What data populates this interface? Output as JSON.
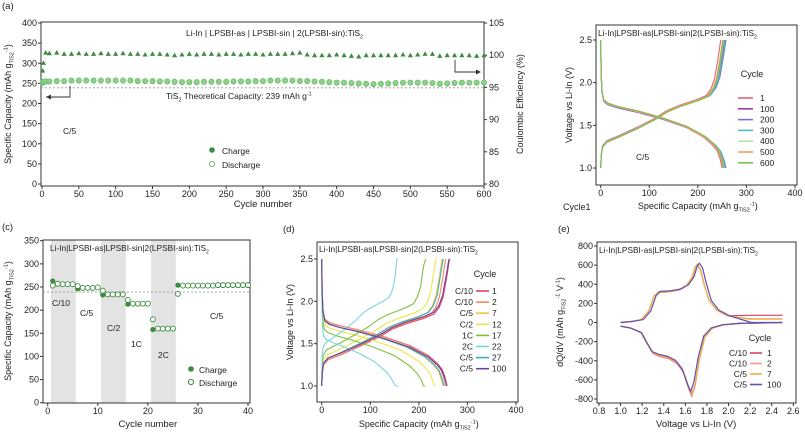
{
  "panel_labels": {
    "a": "(a)",
    "c": "(c)",
    "d": "(d)",
    "e": "(e)"
  },
  "cycle1_label": "Cycle1",
  "colors": {
    "charge": "#3d8b40",
    "discharge": "#6cc06a",
    "ce": "#3d8b40",
    "shade": "#e3e3e3",
    "dashed": "#9a9a9a"
  },
  "chart_data": [
    {
      "type": "scatter",
      "panel": "a",
      "title_main": "Li-In | LPSBI-as | LPSBI-sin | 2(LPSBI-sin):TiS",
      "title_sub": "2",
      "theory_pre": "TiS",
      "theory_sub": "2",
      "theory_post": " Theoretical Capacity:  239 mAh g",
      "theory_sup": "-1",
      "theoretical_capacity": 239,
      "rate_label": "C/5",
      "xlabel": "Cycle number",
      "ylabel_pre": "Specific Capacity (mAh g",
      "ylabel_sub": "TiS2",
      "ylabel_sup": "-1",
      "ylabel_post": ")",
      "y2label": "Coulombic Efficiency (%)",
      "xlim": [
        0,
        600
      ],
      "ylim": [
        0,
        400
      ],
      "y2lim": [
        80,
        105
      ],
      "x_ticks": [
        "0",
        "50",
        "100",
        "150",
        "200",
        "250",
        "300",
        "350",
        "400",
        "450",
        "500",
        "550",
        "600"
      ],
      "y_ticks": [
        "0",
        "50",
        "100",
        "150",
        "200",
        "250",
        "300",
        "350",
        "400"
      ],
      "y2_ticks": [
        "80",
        "85",
        "90",
        "95",
        "100",
        "105"
      ],
      "legend": [
        "Charge",
        "Discharge"
      ],
      "cycles": [
        1,
        2,
        5,
        10,
        20,
        30,
        40,
        50,
        60,
        70,
        80,
        90,
        100,
        110,
        120,
        130,
        140,
        150,
        160,
        170,
        180,
        190,
        200,
        210,
        220,
        230,
        240,
        250,
        260,
        270,
        280,
        290,
        300,
        310,
        320,
        330,
        340,
        350,
        360,
        370,
        380,
        390,
        400,
        410,
        420,
        430,
        440,
        450,
        460,
        470,
        480,
        490,
        500,
        510,
        520,
        530,
        540,
        550,
        560,
        570,
        580,
        590,
        600
      ],
      "discharge": [
        252,
        254,
        255,
        255,
        256,
        256,
        257,
        257,
        257,
        257,
        257,
        257,
        257,
        257,
        257,
        256,
        256,
        256,
        255,
        255,
        254,
        253,
        253,
        253,
        254,
        254,
        254,
        254,
        255,
        255,
        255,
        256,
        256,
        257,
        257,
        257,
        257,
        256,
        256,
        255,
        254,
        253,
        252,
        252,
        251,
        250,
        249,
        248,
        249,
        250,
        251,
        252,
        252,
        252,
        252,
        251,
        249,
        250,
        251,
        252,
        252,
        252,
        252
      ],
      "charge": [
        251,
        253,
        254,
        254,
        255,
        255,
        256,
        256,
        256,
        256,
        256,
        256,
        256,
        256,
        256,
        255,
        255,
        255,
        254,
        254,
        253,
        252,
        252,
        252,
        253,
        253,
        253,
        253,
        254,
        254,
        254,
        255,
        255,
        256,
        256,
        256,
        256,
        255,
        255,
        254,
        253,
        252,
        251,
        251,
        250,
        249,
        248,
        247,
        248,
        249,
        250,
        251,
        251,
        251,
        251,
        250,
        248,
        249,
        250,
        251,
        251,
        251,
        251
      ],
      "ce": [
        97.6,
        98.8,
        100.4,
        100.3,
        100.4,
        100.2,
        100.2,
        100.3,
        100.2,
        100.2,
        100.3,
        100.2,
        100.2,
        100.3,
        100.2,
        100.2,
        100.1,
        100.2,
        100.2,
        100.1,
        100.0,
        100.1,
        100.2,
        100.1,
        100.2,
        100.2,
        100.1,
        100.2,
        100.2,
        100.1,
        100.2,
        100.2,
        100.1,
        100.2,
        100.2,
        100.2,
        100.3,
        100.4,
        100.1,
        100.0,
        100.0,
        100.0,
        100.1,
        100.0,
        99.9,
        99.8,
        100.0,
        100.0,
        100.0,
        100.0,
        100.0,
        100.1,
        100.0,
        100.1,
        100.2,
        100.2,
        99.9,
        100.0,
        100.0,
        100.0,
        100.0,
        99.9,
        100.0
      ]
    },
    {
      "type": "line",
      "panel": "b",
      "title_main": "Li-In|LPSBI-as|LPSBI-sin|2(LPSBI-sin):TiS",
      "title_sub": "2",
      "rate_label": "C/5",
      "xlabel_pre": "Specific Capacity (mAh g",
      "xlabel_sub": "TiS2",
      "xlabel_sup": "-1",
      "xlabel_post": ")",
      "ylabel": "Voltage vs Li-In (V)",
      "xlim": [
        0,
        400
      ],
      "ylim": [
        1.0,
        2.5
      ],
      "x_ticks": [
        "0",
        "100",
        "200",
        "300",
        "400"
      ],
      "y_ticks": [
        "1.0",
        "1.5",
        "2.0",
        "2.5"
      ],
      "legend_title": "Cycle",
      "series": [
        {
          "name": "1",
          "color": "#e8607a",
          "discharge_capacity": 250,
          "charge_capacity": 247,
          "polarization": 0
        },
        {
          "name": "100",
          "color": "#9b3fa0",
          "discharge_capacity": 256,
          "charge_capacity": 255,
          "polarization": 0.01
        },
        {
          "name": "200",
          "color": "#7a6fcf",
          "discharge_capacity": 258,
          "charge_capacity": 258,
          "polarization": 0.01
        },
        {
          "name": "300",
          "color": "#4fb8c0",
          "discharge_capacity": 256,
          "charge_capacity": 256,
          "polarization": 0
        },
        {
          "name": "400",
          "color": "#b8e0a8",
          "discharge_capacity": 254,
          "charge_capacity": 253,
          "polarization": 0
        },
        {
          "name": "500",
          "color": "#f0a060",
          "discharge_capacity": 252,
          "charge_capacity": 251,
          "polarization": 0
        },
        {
          "name": "600",
          "color": "#7ac050",
          "discharge_capacity": 253,
          "charge_capacity": 252,
          "polarization": -0.01
        }
      ]
    },
    {
      "type": "scatter",
      "panel": "c",
      "title_main": "Li-In|LPSBI-as|LPSBI-sin|2(LPSBI-sin):TiS",
      "title_sub": "2",
      "xlabel": "Cycle number",
      "ylabel_pre": "Specific Capacity (mAh g",
      "ylabel_sub": "TiS2",
      "ylabel_sup": "-1",
      "ylabel_post": ")",
      "xlim": [
        0,
        40
      ],
      "ylim": [
        0,
        350
      ],
      "x_ticks": [
        "0",
        "10",
        "20",
        "30",
        "40"
      ],
      "y_ticks": [
        "0",
        "50",
        "100",
        "150",
        "200",
        "250",
        "300",
        "350"
      ],
      "theoretical_capacity": 239,
      "legend": [
        "Charge",
        "Discharge"
      ],
      "rate_segments": [
        {
          "label": "C/10",
          "start": 1,
          "end": 5,
          "shaded": true
        },
        {
          "label": "C/5",
          "start": 6,
          "end": 10,
          "shaded": false
        },
        {
          "label": "C/2",
          "start": 11,
          "end": 15,
          "shaded": true
        },
        {
          "label": "1C",
          "start": 16,
          "end": 20,
          "shaded": false
        },
        {
          "label": "2C",
          "start": 21,
          "end": 25,
          "shaded": true
        },
        {
          "label": "C/5",
          "start": 26,
          "end": 40,
          "shaded": false
        }
      ],
      "charge": [
        263,
        257,
        256,
        256,
        256,
        246,
        248,
        248,
        248,
        249,
        233,
        234,
        234,
        234,
        234,
        213,
        214,
        214,
        214,
        214,
        158,
        160,
        160,
        160,
        160,
        254,
        253,
        253,
        253,
        253,
        253,
        253,
        253,
        254,
        254,
        254,
        254,
        254,
        254,
        254
      ],
      "discharge": [
        253,
        257,
        256,
        256,
        256,
        252,
        248,
        248,
        248,
        249,
        242,
        234,
        234,
        234,
        234,
        222,
        214,
        214,
        214,
        214,
        180,
        160,
        160,
        160,
        160,
        235,
        253,
        253,
        253,
        253,
        253,
        253,
        253,
        254,
        254,
        254,
        254,
        254,
        254,
        254
      ]
    },
    {
      "type": "line",
      "panel": "d",
      "title_main": "Li-In|LPSBI-as|LPSBI-sin|2(LPSBI-sin):TiS",
      "title_sub": "2",
      "xlabel_pre": "Specific Capacity (mAh g",
      "xlabel_sub": "TiS2",
      "xlabel_sup": "-1",
      "xlabel_post": ")",
      "ylabel": "Voltage vs Li-In (V)",
      "xlim": [
        0,
        400
      ],
      "ylim": [
        1.0,
        2.5
      ],
      "x_ticks": [
        "0",
        "100",
        "200",
        "300",
        "400"
      ],
      "y_ticks": [
        "1.0",
        "1.5",
        "2.0",
        "2.5"
      ],
      "legend_title": "Cycle",
      "series": [
        {
          "name": "1",
          "rate": "C/10",
          "color": "#e0406a",
          "discharge_capacity": 258,
          "charge_capacity": 263,
          "polarization": 0
        },
        {
          "name": "2",
          "rate": "C/10",
          "color": "#f08a60",
          "discharge_capacity": 255,
          "charge_capacity": 255,
          "polarization": 0
        },
        {
          "name": "7",
          "rate": "C/5",
          "color": "#f0c040",
          "discharge_capacity": 250,
          "charge_capacity": 248,
          "polarization": 0.02
        },
        {
          "name": "12",
          "rate": "C/2",
          "color": "#ece64a",
          "discharge_capacity": 233,
          "charge_capacity": 236,
          "polarization": 0.06
        },
        {
          "name": "17",
          "rate": "1C",
          "color": "#80c040",
          "discharge_capacity": 213,
          "charge_capacity": 214,
          "polarization": 0.12
        },
        {
          "name": "22",
          "rate": "2C",
          "color": "#7ad4e4",
          "discharge_capacity": 158,
          "charge_capacity": 158,
          "polarization": 0.2
        },
        {
          "name": "27",
          "rate": "C/5",
          "color": "#40b0c0",
          "discharge_capacity": 252,
          "charge_capacity": 250,
          "polarization": 0.02
        },
        {
          "name": "100",
          "rate": "C/5",
          "color": "#7040a0",
          "discharge_capacity": 258,
          "charge_capacity": 262,
          "polarization": 0.02
        }
      ]
    },
    {
      "type": "line",
      "panel": "e",
      "title_main": "Li-In|LPSBI-as|LPSBI-sin|2(LPSBI-sin):TiS",
      "title_sub": "2",
      "xlabel": "Voltage vs Li-In (V)",
      "ylabel_pre": "dQ/dV (mAh g",
      "ylabel_sub": "TiS2",
      "ylabel_sup": "-1",
      "ylabel_post": " V",
      "ylabel_sup2": "-1",
      "ylabel_end": ")",
      "xlim": [
        0.8,
        2.6
      ],
      "ylim": [
        -800,
        800
      ],
      "x_ticks": [
        "0.8",
        "1.0",
        "1.2",
        "1.4",
        "1.6",
        "1.8",
        "2.0",
        "2.2",
        "2.4",
        "2.6"
      ],
      "y_ticks": [
        "-800",
        "-600",
        "-400",
        "-200",
        "0",
        "200",
        "400",
        "600",
        "800"
      ],
      "legend_title": "Cycle",
      "series": [
        {
          "name": "1",
          "rate": "C/10",
          "color": "#e0406a",
          "charge_peak_V": 1.71,
          "charge_peak": 600,
          "discharge_peak_V": 1.66,
          "discharge_peak": -770,
          "tail": 75
        },
        {
          "name": "2",
          "rate": "C/10",
          "color": "#f0a090",
          "charge_peak_V": 1.71,
          "charge_peak": 610,
          "discharge_peak_V": 1.66,
          "discharge_peak": -760,
          "tail": 40
        },
        {
          "name": "7",
          "rate": "C/5",
          "color": "#f0b040",
          "charge_peak_V": 1.71,
          "charge_peak": 600,
          "discharge_peak_V": 1.66,
          "discharge_peak": -750,
          "tail": 35
        },
        {
          "name": "100",
          "rate": "C/5",
          "color": "#6050b0",
          "charge_peak_V": 1.73,
          "charge_peak": 620,
          "discharge_peak_V": 1.65,
          "discharge_peak": -720,
          "tail": 0
        }
      ]
    }
  ]
}
